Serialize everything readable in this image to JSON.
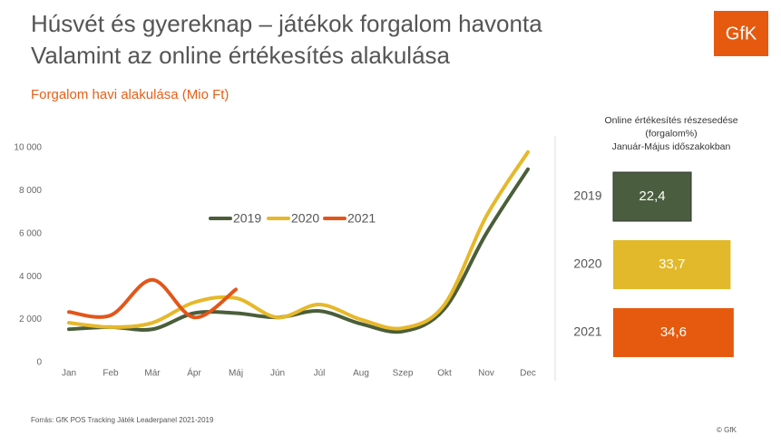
{
  "header": {
    "title_lines": [
      "Húsvét és gyereknap – játékok forgalom havonta",
      "Valamint az online értékesítés alakulása"
    ],
    "logo": "GfK",
    "source": "Forrás: GfK POS Tracking Játék Leaderpanel 2021-2019",
    "copyright": "© GfK"
  },
  "chart_data": [
    {
      "type": "line",
      "title": "Forgalom havi alakulása (Mio Ft)",
      "categories": [
        "Jan",
        "Feb",
        "Már",
        "Ápr",
        "Máj",
        "Jún",
        "Júl",
        "Aug",
        "Szep",
        "Okt",
        "Nov",
        "Dec"
      ],
      "series": [
        {
          "name": "2019",
          "color": "#4a5e3a",
          "values": [
            1550,
            1650,
            1550,
            2300,
            2300,
            2100,
            2400,
            1800,
            1450,
            2500,
            6000,
            9000
          ]
        },
        {
          "name": "2020",
          "color": "#e6b82a",
          "values": [
            1850,
            1650,
            1850,
            2800,
            3000,
            2100,
            2700,
            2000,
            1600,
            2700,
            6800,
            9800
          ]
        },
        {
          "name": "2021",
          "color": "#e2561a",
          "values": [
            2350,
            2200,
            3850,
            2100,
            3400,
            null,
            null,
            null,
            null,
            null,
            null,
            null
          ]
        }
      ],
      "ylim": [
        0,
        10000
      ],
      "yticks": [
        0,
        {
          "value": 2000,
          "label": "2 000"
        },
        {
          "value": 4000,
          "label": "4 000"
        },
        {
          "value": 6000,
          "label": "6 000"
        },
        {
          "value": 8000,
          "label": "8 000"
        },
        {
          "value": 10000,
          "label": "10 000"
        }
      ],
      "grid": false,
      "legend": "center"
    },
    {
      "type": "hbar",
      "title": [
        "Online értékesítés részesedése",
        "(forgalom%)",
        "Január-Május időszakokban"
      ],
      "categories": [
        "2019",
        "2020",
        "2021"
      ],
      "values": [
        22.4,
        33.7,
        34.6
      ],
      "value_labels": [
        "22,4",
        "33,7",
        "34,6"
      ],
      "colors": [
        "#4a5e3f",
        "#e2b92a",
        "#e55a0e"
      ]
    }
  ]
}
